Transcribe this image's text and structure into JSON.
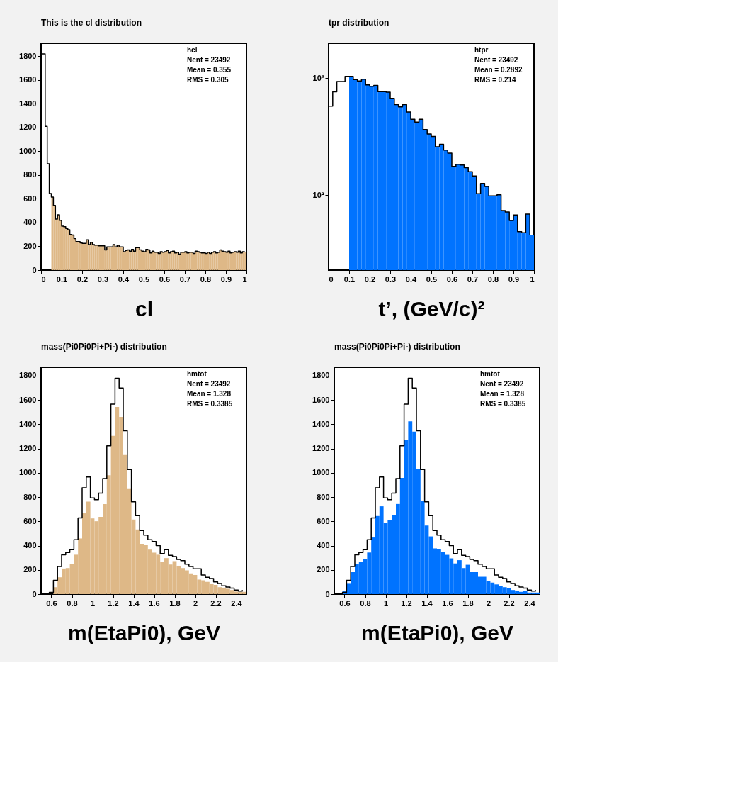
{
  "chart_data": [
    {
      "type": "histogram",
      "title": "This is the cl  distribution",
      "xlabel": "cl",
      "annotations": [
        "hcl",
        "Nent = 23492",
        "Mean  = 0.355",
        "RMS   = 0.305"
      ],
      "bins": [
        0,
        0.01,
        0.02,
        0.03,
        0.04,
        0.05,
        0.06,
        0.07,
        0.08,
        0.09,
        0.1,
        0.11,
        0.12,
        0.13,
        0.14,
        0.15,
        0.16,
        0.17,
        0.18,
        0.19,
        0.2,
        0.21,
        0.22,
        0.23,
        0.24,
        0.25,
        0.26,
        0.27,
        0.28,
        0.29,
        0.3,
        0.31,
        0.32,
        0.33,
        0.34,
        0.35,
        0.36,
        0.37,
        0.38,
        0.39,
        0.4,
        0.41,
        0.42,
        0.43,
        0.44,
        0.45,
        0.46,
        0.47,
        0.48,
        0.49,
        0.5,
        0.51,
        0.52,
        0.53,
        0.54,
        0.55,
        0.56,
        0.57,
        0.58,
        0.59,
        0.6,
        0.61,
        0.62,
        0.63,
        0.64,
        0.65,
        0.66,
        0.67,
        0.68,
        0.69,
        0.7,
        0.71,
        0.72,
        0.73,
        0.74,
        0.75,
        0.76,
        0.77,
        0.78,
        0.79,
        0.8,
        0.81,
        0.82,
        0.83,
        0.84,
        0.85,
        0.86,
        0.87,
        0.88,
        0.89,
        0.9,
        0.91,
        0.92,
        0.93,
        0.94,
        0.95,
        0.96,
        0.97,
        0.98,
        0.99,
        1
      ],
      "series": [
        {
          "type": "histogram",
          "color": "#deb887",
          "values": [
            null,
            null,
            null,
            null,
            null,
            615,
            545,
            430,
            465,
            420,
            370,
            365,
            350,
            340,
            300,
            295,
            265,
            240,
            240,
            230,
            225,
            225,
            255,
            215,
            235,
            215,
            210,
            210,
            205,
            205,
            205,
            170,
            195,
            195,
            195,
            215,
            195,
            210,
            195,
            195,
            155,
            165,
            170,
            160,
            175,
            160,
            190,
            190,
            170,
            160,
            155,
            175,
            170,
            145,
            160,
            150,
            150,
            140,
            155,
            150,
            155,
            165,
            145,
            155,
            160,
            145,
            150,
            135,
            150,
            150,
            155,
            145,
            150,
            150,
            140,
            160,
            155,
            150,
            145,
            145,
            140,
            150,
            140,
            150,
            155,
            145,
            150,
            170,
            160,
            155,
            150,
            160,
            145,
            150,
            155,
            150,
            160,
            145,
            155,
            150
          ]
        },
        {
          "type": "step",
          "color": "#000000",
          "x": [
            0,
            0.01,
            0.02,
            0.03,
            0.04,
            0.05,
            0.06,
            0.07,
            0.08,
            0.09,
            0.1,
            0.11,
            0.12,
            0.13,
            0.14,
            0.15,
            0.16,
            0.17,
            0.18,
            0.19,
            0.2,
            0.21,
            0.22,
            0.23,
            0.24,
            0.25,
            0.26,
            0.27,
            0.28,
            0.29,
            0.3,
            0.31,
            0.32,
            0.33,
            0.34,
            0.35,
            0.36,
            0.37,
            0.38,
            0.39,
            0.4,
            0.41,
            0.42,
            0.43,
            0.44,
            0.45,
            0.46,
            0.47,
            0.48,
            0.49,
            0.5,
            0.51,
            0.52,
            0.53,
            0.54,
            0.55,
            0.56,
            0.57,
            0.58,
            0.59,
            0.6,
            0.61,
            0.62,
            0.63,
            0.64,
            0.65,
            0.66,
            0.67,
            0.68,
            0.69,
            0.7,
            0.71,
            0.72,
            0.73,
            0.74,
            0.75,
            0.76,
            0.77,
            0.78,
            0.79,
            0.8,
            0.81,
            0.82,
            0.83,
            0.84,
            0.85,
            0.86,
            0.87,
            0.88,
            0.89,
            0.9,
            0.91,
            0.92,
            0.93,
            0.94,
            0.95,
            0.96,
            0.97,
            0.98,
            0.99
          ],
          "values": [
            1820,
            1820,
            1210,
            895,
            645,
            615,
            545,
            430,
            465,
            420,
            370,
            365,
            350,
            340,
            300,
            295,
            265,
            240,
            240,
            230,
            225,
            225,
            255,
            215,
            235,
            215,
            210,
            210,
            205,
            205,
            205,
            170,
            195,
            195,
            195,
            215,
            195,
            210,
            195,
            195,
            155,
            165,
            170,
            160,
            175,
            160,
            190,
            190,
            170,
            160,
            155,
            175,
            170,
            145,
            160,
            150,
            150,
            140,
            155,
            150,
            155,
            165,
            145,
            155,
            160,
            145,
            150,
            135,
            150,
            150,
            155,
            145,
            150,
            150,
            140,
            160,
            155,
            150,
            145,
            145,
            140,
            150,
            140,
            150,
            155,
            145,
            150,
            170,
            160,
            155,
            150,
            160,
            145,
            150,
            155,
            150,
            160,
            145,
            155,
            150
          ]
        }
      ],
      "xlim": [
        0,
        1
      ],
      "ylim": [
        0,
        1910
      ],
      "xticks": [
        0,
        0.1,
        0.2,
        0.3,
        0.4,
        0.5,
        0.6,
        0.7,
        0.8,
        0.9,
        1
      ],
      "yticks": [
        0,
        200,
        400,
        600,
        800,
        1000,
        1200,
        1400,
        1600,
        1800
      ]
    },
    {
      "type": "histogram",
      "title": "tpr  distribution",
      "xlabel": "t’, (GeV/c)²",
      "log": true,
      "annotations": [
        "htpr",
        "Nent = 23492",
        "Mean  = 0.2892",
        "RMS   = 0.214"
      ],
      "bins": [
        0,
        0.02,
        0.04,
        0.06,
        0.08,
        0.1,
        0.12,
        0.14,
        0.16,
        0.18,
        0.2,
        0.22,
        0.24,
        0.26,
        0.28,
        0.3,
        0.32,
        0.34,
        0.36,
        0.38,
        0.4,
        0.42,
        0.44,
        0.46,
        0.48,
        0.5,
        0.52,
        0.54,
        0.56,
        0.58,
        0.6,
        0.62,
        0.64,
        0.66,
        0.68,
        0.7,
        0.72,
        0.74,
        0.76,
        0.78,
        0.8,
        0.82,
        0.84,
        0.86,
        0.88,
        0.9,
        0.92,
        0.94,
        0.96,
        0.98,
        1
      ],
      "series": [
        {
          "type": "histogram",
          "color": "#0073ff",
          "values": [
            null,
            null,
            null,
            null,
            null,
            1032,
            969,
            943,
            977,
            873,
            849,
            865,
            765,
            765,
            758,
            670,
            593,
            567,
            593,
            513,
            445,
            420,
            445,
            363,
            333,
            317,
            259,
            272,
            243,
            229,
            176,
            184,
            181,
            172,
            159,
            146,
            103,
            126,
            119,
            99,
            99,
            101,
            74,
            72,
            61,
            68,
            49,
            48,
            69,
            46
          ]
        },
        {
          "type": "step",
          "color": "#000000",
          "x": [
            0,
            0.02,
            0.04,
            0.06,
            0.08,
            0.1,
            0.12,
            0.14,
            0.16,
            0.18,
            0.2,
            0.22,
            0.24,
            0.26,
            0.28,
            0.3,
            0.32,
            0.34,
            0.36,
            0.38,
            0.4,
            0.42,
            0.44,
            0.46,
            0.48,
            0.5,
            0.52,
            0.54,
            0.56,
            0.58,
            0.6,
            0.62,
            0.64,
            0.66,
            0.68,
            0.7,
            0.72,
            0.74,
            0.76,
            0.78,
            0.8,
            0.82,
            0.84,
            0.86,
            0.88,
            0.9,
            0.92,
            0.94,
            0.96,
            0.98
          ],
          "values": [
            575,
            762,
            934,
            934,
            1032,
            1032,
            969,
            943,
            977,
            873,
            849,
            865,
            765,
            765,
            758,
            670,
            593,
            567,
            593,
            513,
            445,
            420,
            445,
            363,
            333,
            317,
            259,
            272,
            243,
            229,
            176,
            184,
            181,
            172,
            159,
            146,
            103,
            126,
            119,
            99,
            99,
            101,
            74,
            72,
            61,
            68,
            49,
            48,
            69,
            46
          ]
        }
      ],
      "xlim": [
        0,
        1
      ],
      "ylim": [
        23,
        1980
      ],
      "xticks": [
        0,
        0.1,
        0.2,
        0.3,
        0.4,
        0.5,
        0.6,
        0.7,
        0.8,
        0.9,
        1
      ],
      "yticks": [
        {
          "value": 100,
          "label": "10²"
        },
        {
          "value": 1000,
          "label": "10³"
        }
      ]
    },
    {
      "type": "histogram",
      "title": "mass(Pi0Pi0Pi+Pi-)  distribution",
      "xlabel": "m(EtaPi0), GeV",
      "annotations": [
        "hmtot",
        "Nent = 23492",
        "Mean  =  1.328",
        "RMS   = 0.3385"
      ],
      "bins": [
        0.5,
        0.54,
        0.58,
        0.62,
        0.66,
        0.7,
        0.74,
        0.78,
        0.82,
        0.86,
        0.9,
        0.94,
        0.98,
        1.02,
        1.06,
        1.1,
        1.14,
        1.18,
        1.22,
        1.26,
        1.3,
        1.34,
        1.38,
        1.42,
        1.46,
        1.5,
        1.54,
        1.58,
        1.62,
        1.66,
        1.7,
        1.74,
        1.78,
        1.82,
        1.86,
        1.9,
        1.94,
        1.98,
        2.02,
        2.06,
        2.1,
        2.14,
        2.18,
        2.22,
        2.26,
        2.3,
        2.34,
        2.38,
        2.42,
        2.46,
        2.5
      ],
      "series": [
        {
          "type": "histogram",
          "color": "#deb887",
          "values": [
            0,
            0,
            0,
            57,
            139,
            211,
            215,
            249,
            325,
            459,
            666,
            763,
            624,
            601,
            637,
            742,
            980,
            1305,
            1543,
            1461,
            1147,
            866,
            615,
            533,
            415,
            405,
            367,
            342,
            325,
            266,
            297,
            244,
            272,
            234,
            215,
            196,
            171,
            158,
            120,
            114,
            101,
            82,
            76,
            57,
            53,
            44,
            34,
            21,
            19,
            19
          ]
        },
        {
          "type": "step",
          "color": "#000000",
          "x": [
            0.5,
            0.54,
            0.58,
            0.62,
            0.66,
            0.7,
            0.74,
            0.78,
            0.82,
            0.86,
            0.9,
            0.94,
            0.98,
            1.02,
            1.06,
            1.1,
            1.14,
            1.18,
            1.22,
            1.26,
            1.3,
            1.34,
            1.38,
            1.42,
            1.46,
            1.5,
            1.54,
            1.58,
            1.62,
            1.66,
            1.7,
            1.74,
            1.78,
            1.82,
            1.86,
            1.9,
            1.94,
            1.98,
            2.02,
            2.06,
            2.1,
            2.14,
            2.18,
            2.22,
            2.26,
            2.3,
            2.34,
            2.38,
            2.42,
            2.46
          ],
          "values": [
            0,
            0,
            15,
            114,
            228,
            325,
            344,
            367,
            449,
            628,
            877,
            965,
            793,
            778,
            833,
            953,
            1223,
            1566,
            1779,
            1699,
            1347,
            1027,
            761,
            647,
            525,
            487,
            449,
            434,
            401,
            335,
            367,
            320,
            310,
            287,
            276,
            247,
            228,
            209,
            209,
            158,
            139,
            129,
            101,
            88,
            68,
            59,
            49,
            34,
            25,
            34
          ]
        }
      ],
      "xlim": [
        0.5,
        2.5
      ],
      "ylim": [
        0,
        1870
      ],
      "xticks": [
        0.6,
        0.8,
        1,
        1.2,
        1.4,
        1.6,
        1.8,
        2,
        2.2,
        2.4
      ],
      "yticks": [
        0,
        200,
        400,
        600,
        800,
        1000,
        1200,
        1400,
        1600,
        1800
      ]
    },
    {
      "type": "histogram",
      "title": "mass(Pi0Pi0Pi+Pi-)  distribution",
      "xlabel": "m(EtaPi0), GeV",
      "annotations": [
        "hmtot",
        "Nent = 23492",
        "Mean  =  1.328",
        "RMS   = 0.3385"
      ],
      "bins": [
        0.5,
        0.54,
        0.58,
        0.62,
        0.66,
        0.7,
        0.74,
        0.78,
        0.82,
        0.86,
        0.9,
        0.94,
        0.98,
        1.02,
        1.06,
        1.1,
        1.14,
        1.18,
        1.22,
        1.26,
        1.3,
        1.34,
        1.38,
        1.42,
        1.46,
        1.5,
        1.54,
        1.58,
        1.62,
        1.66,
        1.7,
        1.74,
        1.78,
        1.82,
        1.86,
        1.9,
        1.94,
        1.98,
        2.02,
        2.06,
        2.1,
        2.14,
        2.18,
        2.22,
        2.26,
        2.3,
        2.34,
        2.38,
        2.42,
        2.46,
        2.5
      ],
      "series": [
        {
          "type": "histogram",
          "color": "#0073ff",
          "values": [
            0,
            0,
            23,
            91,
            181,
            248,
            263,
            290,
            343,
            467,
            644,
            724,
            587,
            608,
            653,
            743,
            958,
            1272,
            1425,
            1339,
            1029,
            771,
            566,
            476,
            377,
            368,
            349,
            324,
            295,
            253,
            280,
            215,
            242,
            181,
            181,
            143,
            143,
            109,
            95,
            80,
            70,
            57,
            48,
            34,
            29,
            19,
            25,
            13,
            13,
            13
          ]
        },
        {
          "type": "step",
          "color": "#000000",
          "x": [
            0.5,
            0.54,
            0.58,
            0.62,
            0.66,
            0.7,
            0.74,
            0.78,
            0.82,
            0.86,
            0.9,
            0.94,
            0.98,
            1.02,
            1.06,
            1.1,
            1.14,
            1.18,
            1.22,
            1.26,
            1.3,
            1.34,
            1.38,
            1.42,
            1.46,
            1.5,
            1.54,
            1.58,
            1.62,
            1.66,
            1.7,
            1.74,
            1.78,
            1.82,
            1.86,
            1.9,
            1.94,
            1.98,
            2.02,
            2.06,
            2.1,
            2.14,
            2.18,
            2.22,
            2.26,
            2.3,
            2.34,
            2.38,
            2.42,
            2.46
          ],
          "values": [
            0,
            0,
            15,
            114,
            228,
            325,
            344,
            367,
            449,
            628,
            877,
            965,
            793,
            778,
            833,
            953,
            1223,
            1566,
            1779,
            1699,
            1347,
            1027,
            761,
            647,
            525,
            487,
            449,
            434,
            401,
            335,
            367,
            320,
            310,
            287,
            276,
            247,
            228,
            209,
            209,
            158,
            139,
            129,
            101,
            88,
            68,
            59,
            49,
            34,
            25,
            34
          ]
        }
      ],
      "xlim": [
        0.5,
        2.5
      ],
      "ylim": [
        0,
        1870
      ],
      "xticks": [
        0.6,
        0.8,
        1,
        1.2,
        1.4,
        1.6,
        1.8,
        2,
        2.2,
        2.4
      ],
      "yticks": [
        0,
        200,
        400,
        600,
        800,
        1000,
        1200,
        1400,
        1600,
        1800
      ]
    }
  ]
}
